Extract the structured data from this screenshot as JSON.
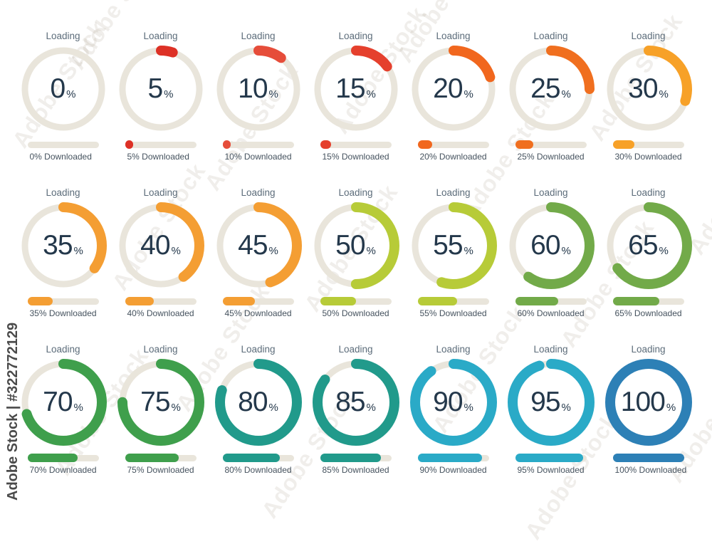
{
  "watermark": {
    "vertical_label": "Adobe Stock | #322772129",
    "tile_label": "Adobe Stock"
  },
  "labels": {
    "loading": "Loading",
    "percent_sign": "%"
  },
  "colors": {
    "track": "#e9e5db",
    "number_text": "#24384b",
    "loading_text": "#5c6c7a",
    "caption_text": "#45525e",
    "watermark_text": "#4a4a4a"
  },
  "chart_data": {
    "type": "pie",
    "variant": "donut-progress-grid",
    "title": "Loading / download percentage donut gauges, 0% to 100% in 5% steps",
    "grid": {
      "columns": 7,
      "rows": 3
    },
    "unit": "%",
    "arc_start": "top",
    "arc_direction": "clockwise",
    "items": [
      {
        "percent": 0,
        "center": "0",
        "caption": "0% Downloaded",
        "color": "#e0332a"
      },
      {
        "percent": 5,
        "center": "5",
        "caption": "5% Downloaded",
        "color": "#dd3126"
      },
      {
        "percent": 10,
        "center": "10",
        "caption": "10% Downloaded",
        "color": "#e64d3a"
      },
      {
        "percent": 15,
        "center": "15",
        "caption": "15% Downloaded",
        "color": "#e5402d"
      },
      {
        "percent": 20,
        "center": "20",
        "caption": "20% Downloaded",
        "color": "#f1671e"
      },
      {
        "percent": 25,
        "center": "25",
        "caption": "25% Downloaded",
        "color": "#f06f1f"
      },
      {
        "percent": 30,
        "center": "30",
        "caption": "30% Downloaded",
        "color": "#f7a128"
      },
      {
        "percent": 35,
        "center": "35",
        "caption": "35% Downloaded",
        "color": "#f49e33"
      },
      {
        "percent": 40,
        "center": "40",
        "caption": "40% Downloaded",
        "color": "#f49e33"
      },
      {
        "percent": 45,
        "center": "45",
        "caption": "45% Downloaded",
        "color": "#f49e33"
      },
      {
        "percent": 50,
        "center": "50",
        "caption": "50% Downloaded",
        "color": "#b7cb38"
      },
      {
        "percent": 55,
        "center": "55",
        "caption": "55% Downloaded",
        "color": "#b7cb38"
      },
      {
        "percent": 60,
        "center": "60",
        "caption": "60% Downloaded",
        "color": "#72aa49"
      },
      {
        "percent": 65,
        "center": "65",
        "caption": "65% Downloaded",
        "color": "#72aa49"
      },
      {
        "percent": 70,
        "center": "70",
        "caption": "70% Downloaded",
        "color": "#3f9f4c"
      },
      {
        "percent": 75,
        "center": "75",
        "caption": "75% Downloaded",
        "color": "#3f9f4c"
      },
      {
        "percent": 80,
        "center": "80",
        "caption": "80% Downloaded",
        "color": "#219a8b"
      },
      {
        "percent": 85,
        "center": "85",
        "caption": "85% Downloaded",
        "color": "#219a8b"
      },
      {
        "percent": 90,
        "center": "90",
        "caption": "90% Downloaded",
        "color": "#2aaac7"
      },
      {
        "percent": 95,
        "center": "95",
        "caption": "95% Downloaded",
        "color": "#2aaac7"
      },
      {
        "percent": 100,
        "center": "100",
        "caption": "100% Downloaded",
        "color": "#2d80b6"
      }
    ]
  }
}
